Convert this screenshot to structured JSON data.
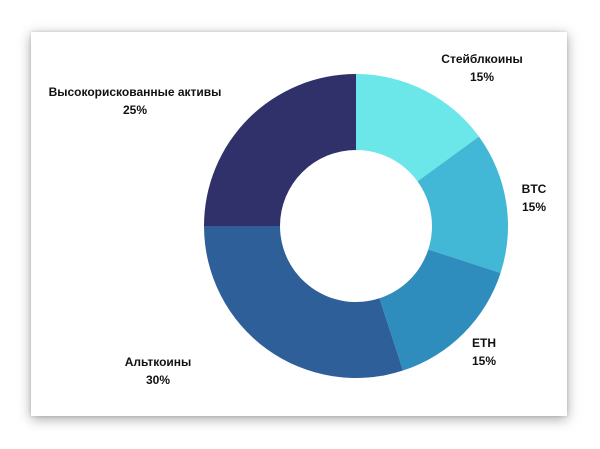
{
  "chart_data": {
    "type": "pie",
    "donut": true,
    "slices": [
      {
        "label": "Стейблкоины",
        "value": 15,
        "value_label": "15%",
        "color": "#6be6e9"
      },
      {
        "label": "BTC",
        "value": 15,
        "value_label": "15%",
        "color": "#43b7d6"
      },
      {
        "label": "ETH",
        "value": 15,
        "value_label": "15%",
        "color": "#2f8dbd"
      },
      {
        "label": "Альткоины",
        "value": 30,
        "value_label": "30%",
        "color": "#2f5f98"
      },
      {
        "label": "Высокорискованные активы",
        "value": 25,
        "value_label": "25%",
        "color": "#30316b"
      }
    ]
  }
}
